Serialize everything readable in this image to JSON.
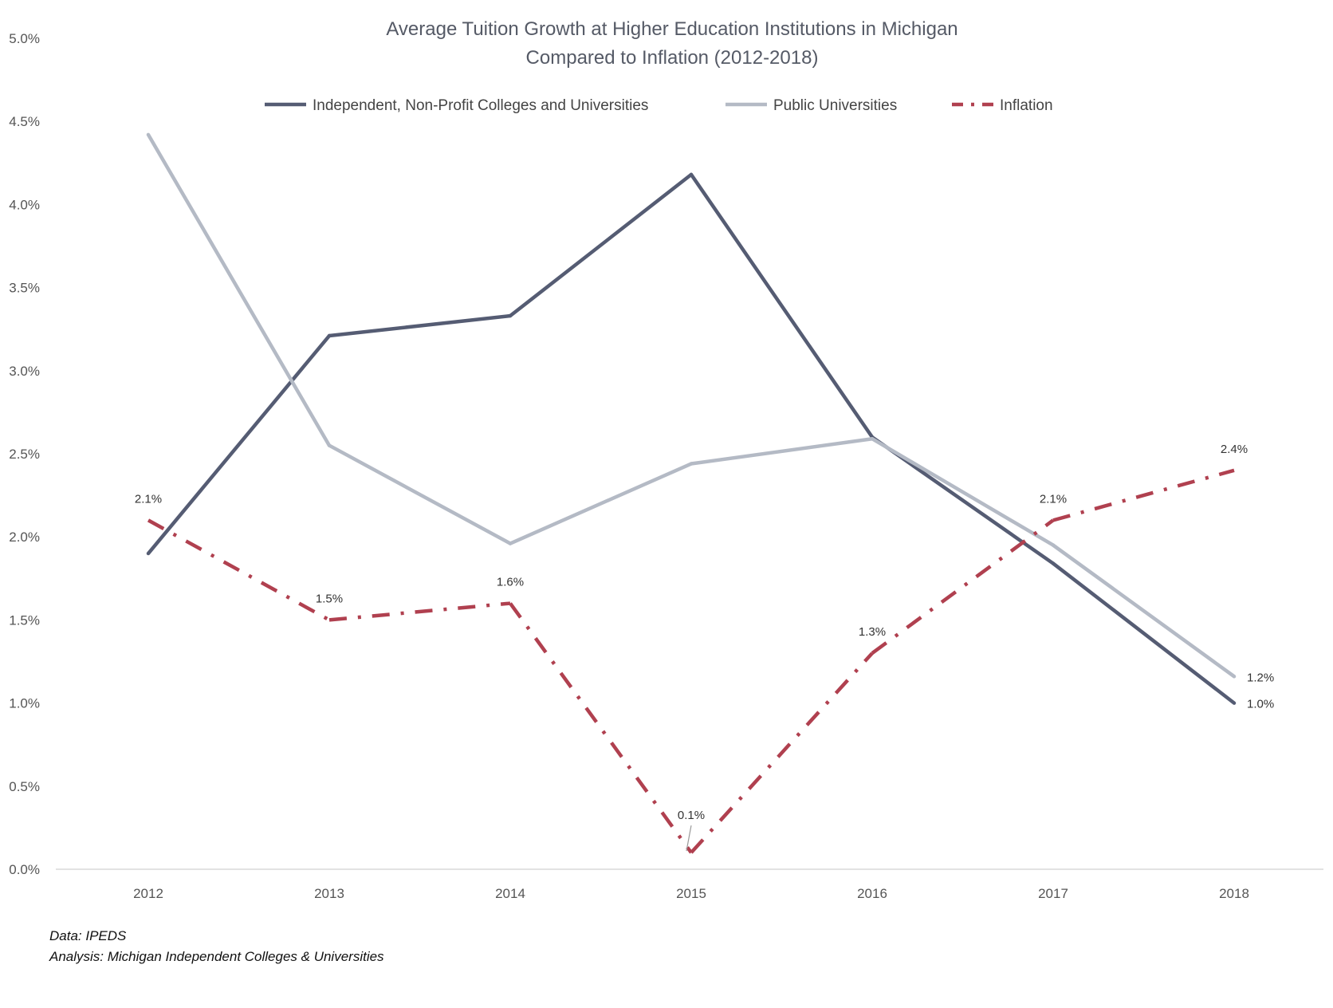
{
  "chart_data": {
    "type": "line",
    "title": [
      "Average Tuition Growth at Higher Education Institutions in Michigan",
      "Compared to Inflation (2012-2018)"
    ],
    "categories": [
      "2012",
      "2013",
      "2014",
      "2015",
      "2016",
      "2017",
      "2018"
    ],
    "y_ticks": [
      "0.0%",
      "0.5%",
      "1.0%",
      "1.5%",
      "2.0%",
      "2.5%",
      "3.0%",
      "3.5%",
      "4.0%",
      "4.5%",
      "5.0%"
    ],
    "ylim": [
      0,
      5
    ],
    "grid": false,
    "legend": "top-center",
    "series": [
      {
        "name": "Independent, Non-Profit Colleges and Universities",
        "values": [
          1.9,
          3.21,
          3.33,
          4.18,
          2.6,
          1.84,
          1.0
        ],
        "color": "#555c73",
        "style": "solid",
        "labels": [
          "",
          "",
          "",
          "",
          "",
          "",
          "1.0%"
        ]
      },
      {
        "name": "Public Universities",
        "values": [
          4.42,
          2.55,
          1.96,
          2.44,
          2.59,
          1.95,
          1.16
        ],
        "color": "#b4bac5",
        "style": "solid",
        "labels": [
          "",
          "",
          "",
          "",
          "",
          "",
          "1.2%"
        ]
      },
      {
        "name": "Inflation",
        "values": [
          2.1,
          1.5,
          1.6,
          0.1,
          1.3,
          2.1,
          2.4
        ],
        "color": "#b0404f",
        "style": "dash-dot",
        "labels": [
          "2.1%",
          "1.5%",
          "1.6%",
          "0.1%",
          "1.3%",
          "2.1%",
          "2.4%"
        ]
      }
    ]
  },
  "footnotes": {
    "data_source": "Data: IPEDS",
    "analysis": "Analysis: Michigan Independent Colleges & Universities"
  }
}
